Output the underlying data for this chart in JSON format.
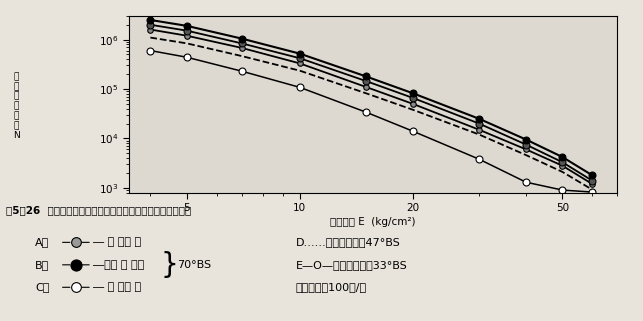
{
  "bg_color": "#e8e4dc",
  "plot_bg": "#ddd9d0",
  "xlim": [
    3.5,
    70
  ],
  "ylim": [
    800,
    3000000
  ],
  "xticks": [
    5,
    10,
    20,
    50
  ],
  "yticks": [
    1000,
    10000,
    100000,
    1000000
  ],
  "ytick_labels": [
    "10^3",
    "10^4",
    "10^5",
    "10^6"
  ],
  "xlabel": "形变储能 E  (kg/cm²)",
  "ylabel_chars": [
    "疲",
    "劳",
    "寿",
    "命",
    "次",
    "数",
    "N"
  ],
  "lines": {
    "A": {
      "x": [
        4,
        5,
        7,
        10,
        15,
        20,
        30,
        40,
        50,
        60
      ],
      "y": [
        1600000,
        1200000,
        680000,
        330000,
        110000,
        50000,
        15000,
        6000,
        2800,
        1200
      ],
      "linestyle": "-",
      "linewidth": 1.3,
      "marker": "o",
      "markersize": 4,
      "markerfacecolor": "#888888",
      "markeredgecolor": "black",
      "markeredgewidth": 0.8
    },
    "B": {
      "x": [
        4,
        5,
        7,
        10,
        15,
        20,
        30,
        40,
        50,
        60
      ],
      "y": [
        2500000,
        1900000,
        1050000,
        520000,
        180000,
        82000,
        25000,
        9500,
        4200,
        1800
      ],
      "linestyle": "-",
      "linewidth": 1.5,
      "marker": "o",
      "markersize": 5,
      "markerfacecolor": "black",
      "markeredgecolor": "black",
      "markeredgewidth": 0.8
    },
    "C": {
      "x": [
        4,
        5,
        7,
        10,
        15,
        20,
        30,
        40,
        50,
        60
      ],
      "y": [
        2000000,
        1520000,
        840000,
        420000,
        145000,
        66000,
        20000,
        7500,
        3300,
        1400
      ],
      "linestyle": "-",
      "linewidth": 1.3,
      "marker": "o",
      "markersize": 5,
      "markerfacecolor": "#555555",
      "markeredgecolor": "black",
      "markeredgewidth": 0.8
    },
    "D": {
      "x": [
        4,
        5,
        7,
        10,
        15,
        20,
        30,
        40,
        50,
        60
      ],
      "y": [
        1100000,
        840000,
        465000,
        235000,
        82000,
        38000,
        12000,
        4600,
        2100,
        920
      ],
      "linestyle": "--",
      "linewidth": 1.3,
      "marker": null,
      "markersize": 0,
      "markerfacecolor": "none",
      "markeredgecolor": "black",
      "markeredgewidth": 0.8
    },
    "E": {
      "x": [
        4,
        5,
        7,
        10,
        15,
        20,
        30,
        40,
        50,
        60
      ],
      "y": [
        600000,
        440000,
        230000,
        108000,
        34000,
        14000,
        3800,
        1300,
        900,
        820
      ],
      "linestyle": "-",
      "linewidth": 1.1,
      "marker": "o",
      "markersize": 5,
      "markerfacecolor": "white",
      "markeredgecolor": "black",
      "markeredgewidth": 0.8
    }
  },
  "caption": "图5！26  含炭黑的天然硫化胶试样形变储能与疲劳寿命的关系",
  "leg_A_prefix": "A－",
  "leg_A_suffix": "― 槽 法炭 黑",
  "leg_B_prefix": "B－",
  "leg_B_suffix": "―高耐 磨 炭黑",
  "leg_C_prefix": "C－",
  "leg_C_suffix": "― 灯 烟炭 黑",
  "leg_brace": "70°BS",
  "leg_D": "D……未填充硫化腠47°BS",
  "leg_E": "E—O—未填充硫化腠33°BS",
  "leg_freq": "形变频率：100次/分"
}
